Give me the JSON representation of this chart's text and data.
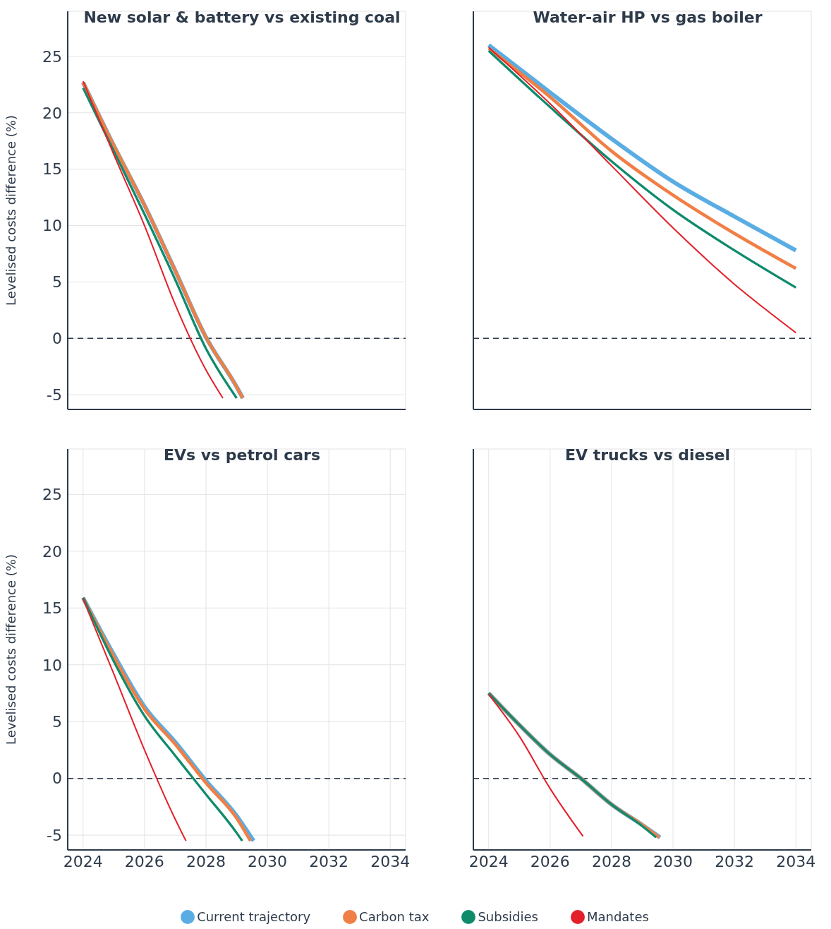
{
  "chart_data": [
    {
      "type": "line",
      "title": "New solar & battery vs existing coal",
      "ylabel": "Levelised costs difference (%)",
      "xlim": [
        2023.5,
        2034.5
      ],
      "xticks": [
        2024,
        2026,
        2028,
        2030,
        2032,
        2034
      ],
      "ylim": [
        -6.3,
        29
      ],
      "yticks": [
        -5,
        0,
        5,
        10,
        15,
        20,
        25
      ],
      "grid": true,
      "tick_labels": "y",
      "legend": "bottom",
      "ref_lines": [
        {
          "axis": "y",
          "value": 0,
          "color": "#2d3a4a",
          "line_style": "dashed"
        }
      ],
      "series": [
        {
          "name": "Current trajectory",
          "color": "#5aade3",
          "x": [
            2024,
            2025,
            2026,
            2027,
            2028,
            2029,
            2029.2
          ],
          "values": [
            22.7,
            17.1,
            11.8,
            6.0,
            0.1,
            -4.3,
            -5.3
          ]
        },
        {
          "name": "Carbon tax",
          "color": "#f07f45",
          "x": [
            2024,
            2025,
            2026,
            2027,
            2028,
            2029,
            2029.2
          ],
          "values": [
            22.7,
            17.1,
            11.8,
            6.0,
            0.1,
            -4.3,
            -5.3
          ]
        },
        {
          "name": "Subsidies",
          "color": "#0f8b6c",
          "x": [
            2024,
            2025,
            2026,
            2027,
            2028,
            2029
          ],
          "values": [
            22.2,
            16.6,
            11.0,
            5.2,
            -0.9,
            -5.3
          ]
        },
        {
          "name": "Mandates",
          "color": "#e3202a",
          "x": [
            2024,
            2025,
            2026,
            2027,
            2028,
            2028.55
          ],
          "values": [
            22.8,
            16.3,
            10.0,
            3.0,
            -2.8,
            -5.3
          ]
        }
      ]
    },
    {
      "type": "line",
      "title": "Water-air HP vs gas boiler",
      "xlim": [
        2023.5,
        2034.5
      ],
      "xticks": [
        2024,
        2026,
        2028,
        2030,
        2032,
        2034
      ],
      "ylim": [
        -6.3,
        29
      ],
      "yticks": [
        -5,
        0,
        5,
        10,
        15,
        20,
        25
      ],
      "grid": true,
      "tick_labels": false,
      "ref_lines": [
        {
          "axis": "y",
          "value": 0,
          "color": "#2d3a4a",
          "line_style": "dashed"
        }
      ],
      "series": [
        {
          "color": "#5aade3",
          "x": [
            2024,
            2026,
            2028,
            2030,
            2032,
            2034
          ],
          "values": [
            26.0,
            21.8,
            17.7,
            13.9,
            10.8,
            7.8
          ]
        },
        {
          "color": "#f07f45",
          "x": [
            2024,
            2026,
            2028,
            2030,
            2032,
            2034
          ],
          "values": [
            25.7,
            21.4,
            16.6,
            12.7,
            9.3,
            6.2
          ]
        },
        {
          "color": "#0f8b6c",
          "x": [
            2024,
            2026,
            2028,
            2030,
            2032,
            2034
          ],
          "values": [
            25.5,
            20.5,
            15.7,
            11.4,
            7.8,
            4.5
          ]
        },
        {
          "color": "#e3202a",
          "x": [
            2024,
            2026,
            2028,
            2030,
            2032,
            2033,
            2034
          ],
          "values": [
            25.8,
            20.8,
            15.3,
            9.8,
            4.8,
            2.6,
            0.5
          ]
        }
      ]
    },
    {
      "type": "line",
      "title": "EVs vs petrol cars",
      "ylabel": "Levelised costs difference (%)",
      "xlim": [
        2023.5,
        2034.5
      ],
      "xticks": [
        2024,
        2026,
        2028,
        2030,
        2032,
        2034
      ],
      "ylim": [
        -6.3,
        29
      ],
      "yticks": [
        -5,
        0,
        5,
        10,
        15,
        20,
        25
      ],
      "grid": true,
      "ref_lines": [
        {
          "axis": "y",
          "value": 0,
          "color": "#2d3a4a",
          "line_style": "dashed"
        }
      ],
      "series": [
        {
          "color": "#5aade3",
          "x": [
            2024,
            2025,
            2026,
            2027,
            2028,
            2029,
            2029.55
          ],
          "values": [
            15.9,
            10.9,
            6.3,
            3.2,
            -0.2,
            -3.3,
            -5.5
          ]
        },
        {
          "color": "#f07f45",
          "x": [
            2024,
            2025,
            2026,
            2027,
            2028,
            2029,
            2029.45
          ],
          "values": [
            15.9,
            10.7,
            6.1,
            3.0,
            -0.4,
            -3.5,
            -5.5
          ]
        },
        {
          "color": "#0f8b6c",
          "x": [
            2024,
            2025,
            2026,
            2027,
            2028,
            2029,
            2029.18
          ],
          "values": [
            15.9,
            10.3,
            5.5,
            2.0,
            -1.4,
            -4.8,
            -5.5
          ]
        },
        {
          "color": "#e3202a",
          "x": [
            2024,
            2025,
            2026,
            2027,
            2027.35
          ],
          "values": [
            15.8,
            9.2,
            2.5,
            -3.6,
            -5.5
          ]
        }
      ]
    },
    {
      "type": "line",
      "title": "EV trucks vs diesel",
      "xlim": [
        2023.5,
        2034.5
      ],
      "xticks": [
        2024,
        2026,
        2028,
        2030,
        2032,
        2034
      ],
      "ylim": [
        -6.3,
        29
      ],
      "yticks": [
        -5,
        0,
        5,
        10,
        15,
        20,
        25
      ],
      "grid": true,
      "tick_labels": "x",
      "ref_lines": [
        {
          "axis": "y",
          "value": 0,
          "color": "#2d3a4a",
          "line_style": "dashed"
        }
      ],
      "series": [
        {
          "color": "#5aade3",
          "x": [
            2024,
            2025,
            2026,
            2027,
            2028,
            2029,
            2029.58
          ],
          "values": [
            7.5,
            4.7,
            2.1,
            0.0,
            -2.3,
            -4.1,
            -5.2
          ]
        },
        {
          "color": "#f07f45",
          "x": [
            2024,
            2025,
            2026,
            2027,
            2028,
            2029,
            2029.55
          ],
          "values": [
            7.5,
            4.7,
            2.1,
            0.0,
            -2.3,
            -4.1,
            -5.2
          ]
        },
        {
          "color": "#0f8b6c",
          "x": [
            2024,
            2025,
            2026,
            2027,
            2028,
            2029,
            2029.45
          ],
          "values": [
            7.5,
            4.7,
            2.1,
            0.0,
            -2.3,
            -4.2,
            -5.2
          ]
        },
        {
          "color": "#e3202a",
          "x": [
            2024,
            2025,
            2026,
            2027.07
          ],
          "values": [
            7.4,
            3.7,
            -0.9,
            -5.1
          ]
        }
      ]
    }
  ]
}
